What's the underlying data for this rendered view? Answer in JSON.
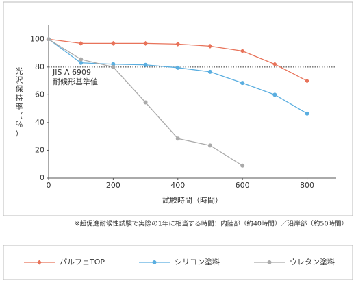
{
  "chart_data": {
    "type": "line",
    "x_label": "試験時間（時間）",
    "y_label": "光沢保持率（％）",
    "x": [
      0,
      100,
      200,
      300,
      400,
      500,
      600,
      700,
      800
    ],
    "series": [
      {
        "name": "パルフェTOP",
        "color": "#e8735a",
        "marker": "diamond",
        "values": [
          100,
          97,
          97,
          97,
          96.5,
          95,
          91.5,
          82,
          70
        ]
      },
      {
        "name": "シリコン塗料",
        "color": "#5aaee0",
        "marker": "circle",
        "values": [
          100,
          83,
          82,
          81.5,
          79.5,
          76.5,
          68.5,
          60,
          46.5
        ]
      },
      {
        "name": "ウレタン塗料",
        "color": "#aaaaaa",
        "marker": "circle",
        "values": [
          100,
          85.5,
          80,
          54.5,
          28.5,
          23.5,
          9,
          null,
          null
        ]
      }
    ],
    "xlim": [
      0,
      890
    ],
    "xticks": [
      0,
      200,
      400,
      600,
      800
    ],
    "ylim": [
      0,
      110
    ],
    "yticks": [
      0,
      20,
      40,
      60,
      80,
      100
    ],
    "reference_line": {
      "value": 80,
      "label_lines": [
        "JIS A 6909",
        "耐候形基準値"
      ]
    },
    "footnote": "※超促進耐候性試験で実際の1年に相当する時間：内陸部（約40時間）／沿岸部（約50時間）",
    "legend_position": "bottom"
  }
}
